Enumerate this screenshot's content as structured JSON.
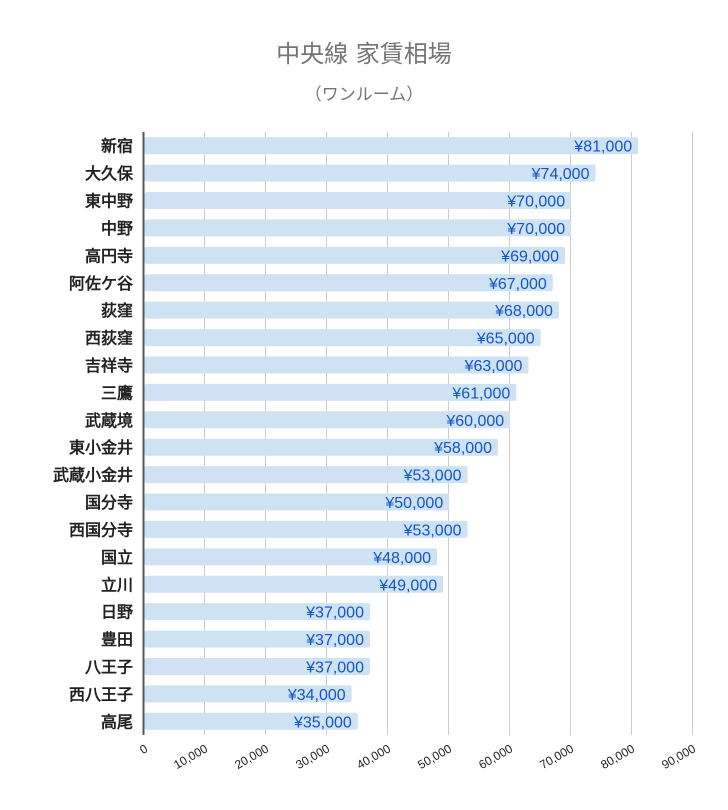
{
  "chart_data": {
    "type": "bar",
    "orientation": "horizontal",
    "title": "中央線 家賃相場",
    "subtitle": "（ワンルーム）",
    "xlabel": "",
    "ylabel": "",
    "xlim": [
      0,
      90000
    ],
    "x_ticks": [
      "0",
      "10,000",
      "20,000",
      "30,000",
      "40,000",
      "50,000",
      "60,000",
      "70,000",
      "80,000",
      "90,000"
    ],
    "grid": true,
    "legend": "none",
    "bar_color": "#cfe2f3",
    "label_color": "#1155cc",
    "categories": [
      "新宿",
      "大久保",
      "東中野",
      "中野",
      "高円寺",
      "阿佐ケ谷",
      "荻窪",
      "西荻窪",
      "吉祥寺",
      "三鷹",
      "武蔵境",
      "東小金井",
      "武蔵小金井",
      "国分寺",
      "西国分寺",
      "国立",
      "立川",
      "日野",
      "豊田",
      "八王子",
      "西八王子",
      "高尾"
    ],
    "values": [
      81000,
      74000,
      70000,
      70000,
      69000,
      67000,
      68000,
      65000,
      63000,
      61000,
      60000,
      58000,
      53000,
      50000,
      53000,
      48000,
      49000,
      37000,
      37000,
      37000,
      34000,
      35000
    ],
    "data_labels": [
      "¥81,000",
      "¥74,000",
      "¥70,000",
      "¥70,000",
      "¥69,000",
      "¥67,000",
      "¥68,000",
      "¥65,000",
      "¥63,000",
      "¥61,000",
      "¥60,000",
      "¥58,000",
      "¥53,000",
      "¥50,000",
      "¥53,000",
      "¥48,000",
      "¥49,000",
      "¥37,000",
      "¥37,000",
      "¥37,000",
      "¥34,000",
      "¥35,000"
    ]
  }
}
